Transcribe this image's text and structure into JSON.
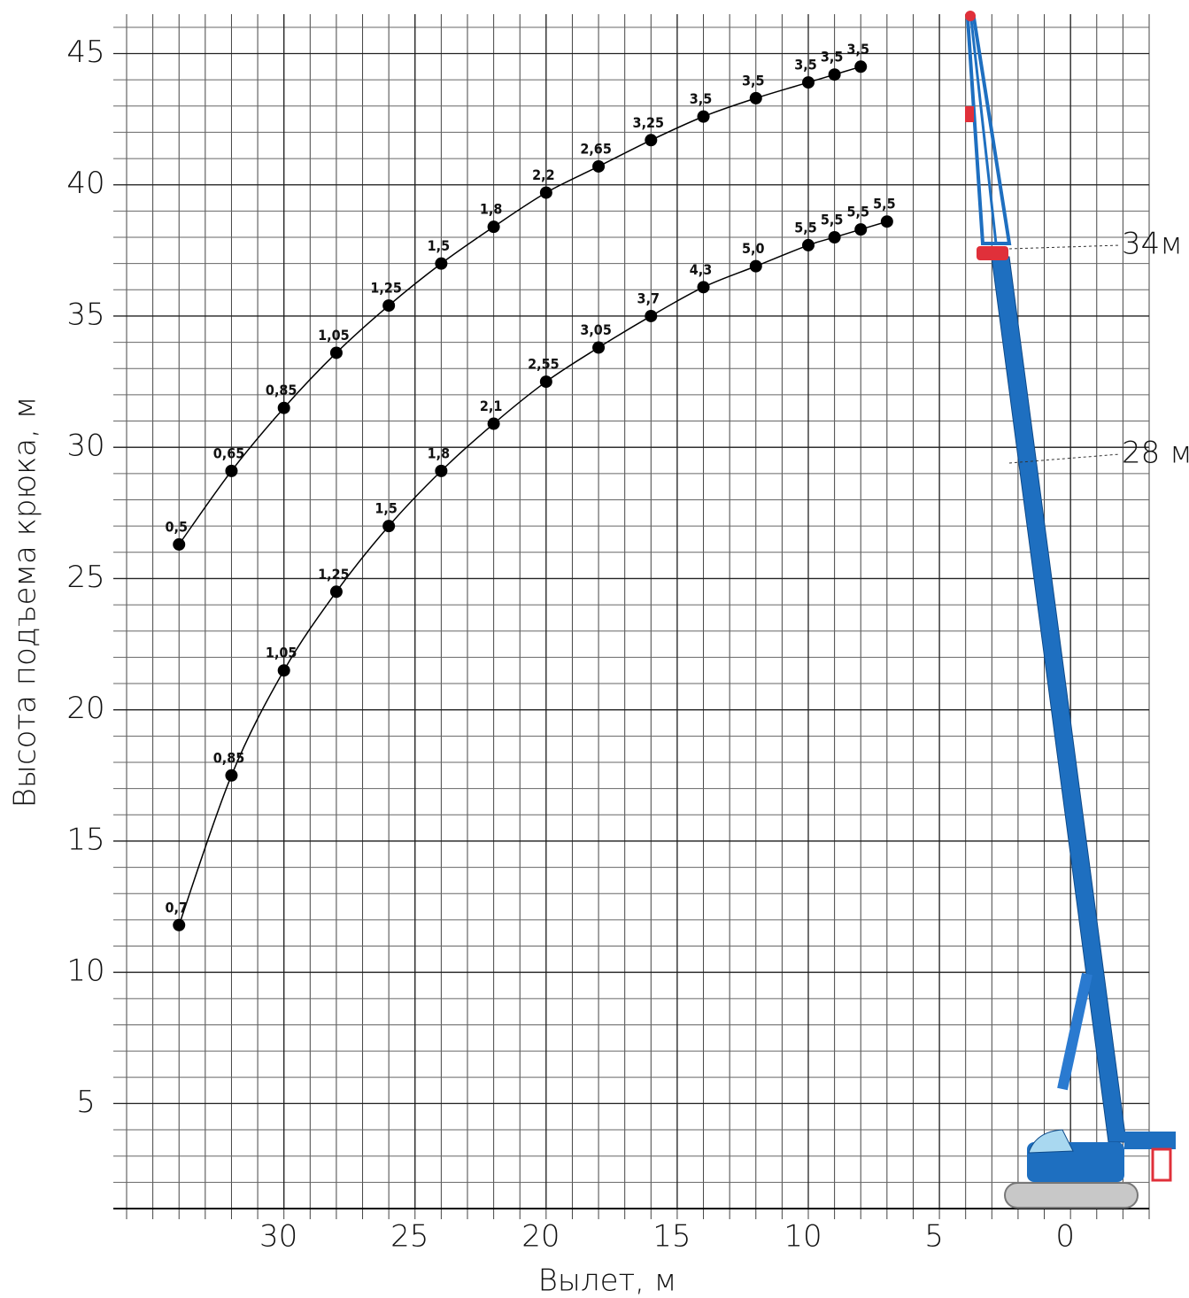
{
  "chart_data": {
    "type": "line",
    "x_label": "Вылет, м",
    "y_label": "Высота подъема крюка, м",
    "xlim": [
      36,
      -3
    ],
    "ylim": [
      1,
      46.5
    ],
    "xticks": [
      30,
      25,
      20,
      15,
      10,
      5,
      0
    ],
    "yticks": [
      5,
      10,
      15,
      20,
      25,
      30,
      35,
      40,
      45
    ],
    "minor_grid_step": 1,
    "grid": true,
    "series": [
      {
        "name": "34м",
        "color": "#000000",
        "x": [
          34,
          32,
          30,
          28,
          26,
          24,
          22,
          20,
          18,
          16,
          14,
          12,
          10,
          9,
          8
        ],
        "values": [
          26.3,
          29.1,
          31.5,
          33.6,
          35.4,
          37.0,
          38.4,
          39.7,
          40.7,
          41.7,
          42.6,
          43.3,
          43.9,
          44.2,
          44.5
        ],
        "point_labels": [
          "0,5",
          "0,65",
          "0,85",
          "1,05",
          "1,25",
          "1,5",
          "1,8",
          "2,2",
          "2,65",
          "3,25",
          "3,5",
          "3,5",
          "3,5",
          "3,5",
          "3,5"
        ]
      },
      {
        "name": "28 м",
        "color": "#000000",
        "x": [
          34,
          32,
          30,
          28,
          26,
          24,
          22,
          20,
          18,
          16,
          14,
          12,
          10,
          9,
          8,
          7
        ],
        "values": [
          11.8,
          17.5,
          21.5,
          24.5,
          27.0,
          29.1,
          30.9,
          32.5,
          33.8,
          35.0,
          36.1,
          36.9,
          37.7,
          38.0,
          38.3,
          38.6
        ],
        "point_labels": [
          "0,7",
          "0,85",
          "1,05",
          "1,25",
          "1,5",
          "1,8",
          "2,1",
          "2,55",
          "3,05",
          "3,7",
          "4,3",
          "5,0",
          "5,5",
          "5,5",
          "5,5",
          "5,5"
        ]
      }
    ]
  }
}
